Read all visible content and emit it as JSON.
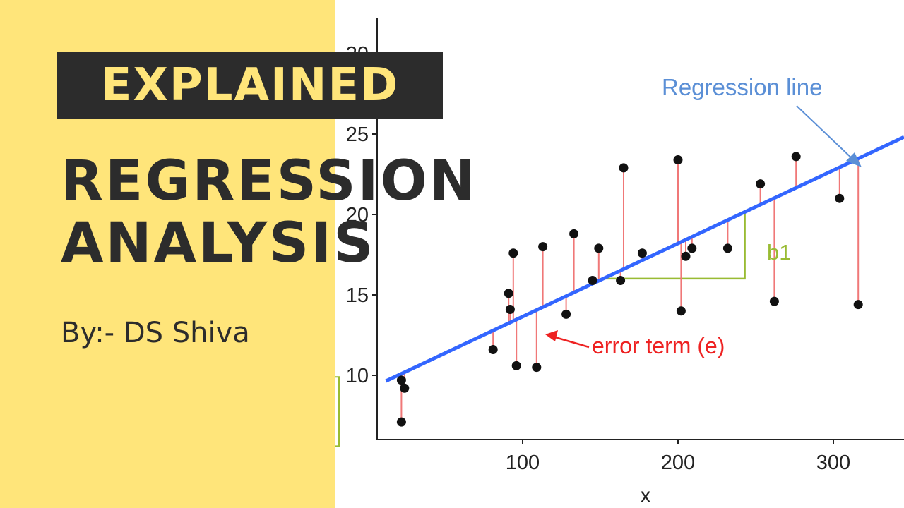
{
  "theme": {
    "panel_color": "#FFE57A",
    "tag_bg": "#2C2C2C",
    "tag_text_color": "#FFE57A",
    "title_color": "#2C2C2C",
    "byline_color": "#2C2C2C"
  },
  "thumbnail": {
    "tag": "EXPLAINED",
    "title_line1": "REGRESSION",
    "title_line2": "ANALYSIS",
    "byline": "By:- DS Shiva"
  },
  "chart_data": {
    "type": "scatter",
    "xlabel": "x",
    "ylabel": "",
    "xlim": [
      12,
      332
    ],
    "ylim": [
      5.5,
      30
    ],
    "x_ticks": [
      100,
      200,
      300
    ],
    "y_ticks": [
      10,
      15,
      20,
      25,
      30
    ],
    "grid": false,
    "colors": {
      "points": "#111111",
      "regression_line": "#3366FF",
      "residuals": "#F07878",
      "slope_bracket": "#99BB33",
      "regression_label": "#5B8FD6",
      "error_label": "#EE2222"
    },
    "regression_line": {
      "intercept": 9.1,
      "slope": 0.0455
    },
    "points": [
      {
        "x": 22,
        "y": 7.1
      },
      {
        "x": 22,
        "y": 9.7
      },
      {
        "x": 24,
        "y": 9.2
      },
      {
        "x": 81,
        "y": 11.6
      },
      {
        "x": 91,
        "y": 15.1
      },
      {
        "x": 92,
        "y": 14.1
      },
      {
        "x": 94,
        "y": 17.6
      },
      {
        "x": 96,
        "y": 10.6
      },
      {
        "x": 109,
        "y": 10.5
      },
      {
        "x": 113,
        "y": 18.0
      },
      {
        "x": 128,
        "y": 13.8
      },
      {
        "x": 133,
        "y": 18.8
      },
      {
        "x": 145,
        "y": 15.9
      },
      {
        "x": 149,
        "y": 17.9
      },
      {
        "x": 163,
        "y": 15.9
      },
      {
        "x": 165,
        "y": 22.9
      },
      {
        "x": 177,
        "y": 17.6
      },
      {
        "x": 200,
        "y": 23.4
      },
      {
        "x": 202,
        "y": 14.0
      },
      {
        "x": 205,
        "y": 17.4
      },
      {
        "x": 209,
        "y": 17.9
      },
      {
        "x": 232,
        "y": 17.9
      },
      {
        "x": 253,
        "y": 21.9
      },
      {
        "x": 262,
        "y": 14.6
      },
      {
        "x": 276,
        "y": 23.6
      },
      {
        "x": 304,
        "y": 21.0
      },
      {
        "x": 316,
        "y": 14.4
      }
    ],
    "slope_bracket": {
      "x_start": 152,
      "x_end": 243
    },
    "annotations": {
      "regression_label": "Regression line",
      "error_label": "error term (e)",
      "slope_label": "b1"
    }
  }
}
